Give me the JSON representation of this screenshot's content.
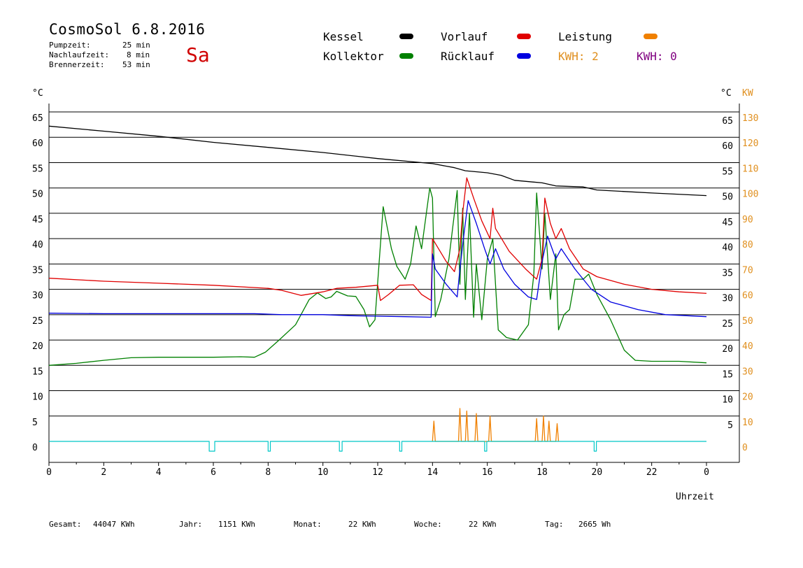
{
  "header": {
    "title": "CosmoSol 6.8.2016",
    "day": "Sa",
    "info": [
      {
        "label": "Pumpzeit:",
        "value": "25 min"
      },
      {
        "label": "Nachlaufzeit:",
        "value": "8 min"
      },
      {
        "label": "Brennerzeit:",
        "value": "53 min"
      }
    ]
  },
  "legend": {
    "items": [
      {
        "name": "Kessel",
        "color": "#000000"
      },
      {
        "name": "Kollektor",
        "color": "#008000"
      },
      {
        "name": "Vorlauf",
        "color": "#e00000"
      },
      {
        "name": "Rücklauf",
        "color": "#0000e0"
      },
      {
        "name": "Leistung",
        "color": "#f08000"
      }
    ],
    "kwh": [
      {
        "text": "KWH: 2",
        "color": "#e09020"
      },
      {
        "text": "KWH: 0",
        "color": "#800080"
      }
    ]
  },
  "stats": [
    {
      "label": "Gesamt:",
      "value": "44047 KWh"
    },
    {
      "label": "Jahr:",
      "value": "1151 KWh"
    },
    {
      "label": "Monat:",
      "value": "22 KWh"
    },
    {
      "label": "Woche:",
      "value": "22 KWh"
    },
    {
      "label": "Tag:",
      "value": "2665 Wh"
    }
  ],
  "chart_data": {
    "type": "line",
    "xlabel": "Uhrzeit",
    "ylabel_left": "°C",
    "ylabel_right": "°C",
    "ylabel_right2": "KW",
    "xlim": [
      0,
      24
    ],
    "ylim": [
      0,
      65
    ],
    "ylim_kw": [
      0,
      130
    ],
    "x_ticks": [
      "0",
      "2",
      "4",
      "6",
      "8",
      "10",
      "12",
      "14",
      "16",
      "18",
      "20",
      "22",
      "0"
    ],
    "y_ticks_left": [
      "0",
      "5",
      "10",
      "15",
      "20",
      "25",
      "30",
      "35",
      "40",
      "45",
      "50",
      "55",
      "60",
      "65"
    ],
    "y_ticks_right": [
      "5",
      "10",
      "15",
      "20",
      "25",
      "30",
      "35",
      "40",
      "45",
      "50",
      "55",
      "60",
      "65"
    ],
    "y_ticks_kw": [
      "0",
      "10",
      "20",
      "30",
      "40",
      "50",
      "60",
      "70",
      "80",
      "90",
      "100",
      "110",
      "120",
      "130"
    ],
    "grid": "horizontal",
    "series": [
      {
        "name": "Kessel",
        "color": "#000000",
        "points": [
          [
            0,
            62.2
          ],
          [
            2,
            61.2
          ],
          [
            4,
            60.2
          ],
          [
            6,
            59.0
          ],
          [
            8,
            58.0
          ],
          [
            10,
            57.0
          ],
          [
            12,
            55.8
          ],
          [
            14,
            54.8
          ],
          [
            14.8,
            54.0
          ],
          [
            15.2,
            53.4
          ],
          [
            16,
            53.0
          ],
          [
            16.5,
            52.5
          ],
          [
            17,
            51.5
          ],
          [
            18,
            51.0
          ],
          [
            18.5,
            50.4
          ],
          [
            19.5,
            50.2
          ],
          [
            20,
            49.6
          ],
          [
            22,
            49.0
          ],
          [
            24,
            48.5
          ]
        ]
      },
      {
        "name": "Kollektor",
        "color": "#008000",
        "points": [
          [
            0,
            15.0
          ],
          [
            1,
            15.4
          ],
          [
            2,
            16.0
          ],
          [
            3,
            16.5
          ],
          [
            4,
            16.6
          ],
          [
            5,
            16.6
          ],
          [
            6,
            16.6
          ],
          [
            7,
            16.7
          ],
          [
            7.5,
            16.6
          ],
          [
            7.9,
            17.6
          ],
          [
            8.4,
            20.0
          ],
          [
            9,
            23.0
          ],
          [
            9.5,
            28.0
          ],
          [
            9.8,
            29.3
          ],
          [
            10.1,
            28.2
          ],
          [
            10.3,
            28.5
          ],
          [
            10.5,
            29.6
          ],
          [
            10.9,
            28.7
          ],
          [
            11.2,
            28.6
          ],
          [
            11.5,
            26.0
          ],
          [
            11.7,
            22.6
          ],
          [
            11.9,
            24.0
          ],
          [
            12.2,
            46.3
          ],
          [
            12.5,
            38.0
          ],
          [
            12.7,
            34.5
          ],
          [
            13.0,
            32.0
          ],
          [
            13.2,
            35.0
          ],
          [
            13.4,
            42.5
          ],
          [
            13.6,
            38.0
          ],
          [
            13.9,
            50.0
          ],
          [
            14.0,
            48.0
          ],
          [
            14.1,
            24.6
          ],
          [
            14.3,
            28.0
          ],
          [
            14.6,
            36.0
          ],
          [
            14.9,
            49.5
          ],
          [
            15.0,
            31.0
          ],
          [
            15.1,
            46.0
          ],
          [
            15.2,
            28.0
          ],
          [
            15.35,
            45.0
          ],
          [
            15.5,
            24.5
          ],
          [
            15.6,
            35.0
          ],
          [
            15.8,
            24.0
          ],
          [
            16.0,
            36.0
          ],
          [
            16.2,
            40.0
          ],
          [
            16.4,
            22.0
          ],
          [
            16.7,
            20.5
          ],
          [
            17.1,
            20.0
          ],
          [
            17.5,
            23.0
          ],
          [
            17.7,
            33.0
          ],
          [
            17.8,
            49.0
          ],
          [
            18.0,
            34.0
          ],
          [
            18.1,
            45.0
          ],
          [
            18.3,
            28.0
          ],
          [
            18.5,
            37.0
          ],
          [
            18.6,
            22.0
          ],
          [
            18.8,
            25.0
          ],
          [
            19.0,
            26.0
          ],
          [
            19.2,
            32.0
          ],
          [
            19.5,
            32.0
          ],
          [
            19.7,
            33.0
          ],
          [
            20.0,
            29.0
          ],
          [
            20.5,
            24.0
          ],
          [
            21.0,
            18.0
          ],
          [
            21.4,
            16.0
          ],
          [
            22,
            15.8
          ],
          [
            23,
            15.8
          ],
          [
            24,
            15.5
          ]
        ]
      },
      {
        "name": "Vorlauf",
        "color": "#e00000",
        "points": [
          [
            0,
            32.2
          ],
          [
            2,
            31.6
          ],
          [
            4,
            31.2
          ],
          [
            6,
            30.8
          ],
          [
            8,
            30.2
          ],
          [
            8.5,
            29.8
          ],
          [
            9.2,
            28.8
          ],
          [
            10,
            29.5
          ],
          [
            10.5,
            30.2
          ],
          [
            11.2,
            30.4
          ],
          [
            12.0,
            30.8
          ],
          [
            12.1,
            27.8
          ],
          [
            12.4,
            29.0
          ],
          [
            12.8,
            30.8
          ],
          [
            13.3,
            30.9
          ],
          [
            13.6,
            29.0
          ],
          [
            13.95,
            27.8
          ],
          [
            14.0,
            40.0
          ],
          [
            14.5,
            35.5
          ],
          [
            14.8,
            33.5
          ],
          [
            15.0,
            38.0
          ],
          [
            15.1,
            45.0
          ],
          [
            15.25,
            52.0
          ],
          [
            15.5,
            48.0
          ],
          [
            15.8,
            43.5
          ],
          [
            16.1,
            40.0
          ],
          [
            16.2,
            46.0
          ],
          [
            16.3,
            42.0
          ],
          [
            16.8,
            37.5
          ],
          [
            17.4,
            34.0
          ],
          [
            17.8,
            32.0
          ],
          [
            18.0,
            36.0
          ],
          [
            18.1,
            48.0
          ],
          [
            18.3,
            43.0
          ],
          [
            18.5,
            40.0
          ],
          [
            18.7,
            42.0
          ],
          [
            19.0,
            38.0
          ],
          [
            19.5,
            34.0
          ],
          [
            20.0,
            32.5
          ],
          [
            21.0,
            31.0
          ],
          [
            22.0,
            30.0
          ],
          [
            23.0,
            29.5
          ],
          [
            24,
            29.2
          ]
        ]
      },
      {
        "name": "Rücklauf",
        "color": "#0000e0",
        "points": [
          [
            0,
            25.3
          ],
          [
            2,
            25.2
          ],
          [
            4,
            25.2
          ],
          [
            6,
            25.2
          ],
          [
            7.5,
            25.2
          ],
          [
            8.5,
            25.0
          ],
          [
            10,
            25.0
          ],
          [
            11,
            24.8
          ],
          [
            12,
            24.7
          ],
          [
            13,
            24.6
          ],
          [
            13.95,
            24.5
          ],
          [
            14.0,
            37.0
          ],
          [
            14.1,
            34.0
          ],
          [
            14.5,
            31.0
          ],
          [
            14.9,
            28.5
          ],
          [
            15.0,
            34.0
          ],
          [
            15.15,
            41.0
          ],
          [
            15.3,
            47.5
          ],
          [
            15.6,
            43.0
          ],
          [
            15.9,
            38.0
          ],
          [
            16.1,
            35.0
          ],
          [
            16.3,
            38.0
          ],
          [
            16.6,
            34.0
          ],
          [
            17.0,
            31.0
          ],
          [
            17.5,
            28.5
          ],
          [
            17.8,
            28.0
          ],
          [
            18.0,
            35.5
          ],
          [
            18.2,
            40.5
          ],
          [
            18.5,
            36.0
          ],
          [
            18.7,
            38.0
          ],
          [
            19.2,
            34.0
          ],
          [
            19.8,
            30.0
          ],
          [
            20.5,
            27.5
          ],
          [
            21.5,
            26.0
          ],
          [
            22.5,
            25.0
          ],
          [
            24,
            24.6
          ]
        ]
      },
      {
        "name": "Leistung",
        "color": "#f08000",
        "points": [
          [
            14.0,
            0
          ],
          [
            14.05,
            8
          ],
          [
            14.1,
            0
          ],
          [
            14.95,
            0
          ],
          [
            15.0,
            13
          ],
          [
            15.05,
            0
          ],
          [
            15.2,
            0
          ],
          [
            15.25,
            12
          ],
          [
            15.3,
            0
          ],
          [
            15.55,
            0
          ],
          [
            15.6,
            11
          ],
          [
            15.65,
            0
          ],
          [
            16.05,
            0
          ],
          [
            16.1,
            10
          ],
          [
            16.15,
            0
          ],
          [
            17.75,
            0
          ],
          [
            17.8,
            9
          ],
          [
            17.85,
            0
          ],
          [
            18.0,
            0
          ],
          [
            18.05,
            10
          ],
          [
            18.1,
            0
          ],
          [
            18.2,
            0
          ],
          [
            18.25,
            8
          ],
          [
            18.3,
            0
          ],
          [
            18.5,
            0
          ],
          [
            18.55,
            7
          ],
          [
            18.6,
            0
          ]
        ]
      },
      {
        "name": "Pumpe",
        "color": "#00c8c8",
        "points": [
          [
            0,
            0
          ],
          [
            5.85,
            0
          ],
          [
            5.85,
            -1
          ],
          [
            6.05,
            -1
          ],
          [
            6.05,
            0
          ],
          [
            8.0,
            0
          ],
          [
            8.0,
            -1
          ],
          [
            8.08,
            -1
          ],
          [
            8.08,
            0
          ],
          [
            10.6,
            0
          ],
          [
            10.6,
            -1
          ],
          [
            10.7,
            -1
          ],
          [
            10.7,
            0
          ],
          [
            12.8,
            0
          ],
          [
            12.8,
            -1
          ],
          [
            12.88,
            -1
          ],
          [
            12.88,
            0
          ],
          [
            15.9,
            0
          ],
          [
            15.9,
            -1
          ],
          [
            15.98,
            -1
          ],
          [
            15.98,
            0
          ],
          [
            19.9,
            0
          ],
          [
            19.9,
            -1
          ],
          [
            19.98,
            -1
          ],
          [
            19.98,
            0
          ],
          [
            24,
            0
          ]
        ]
      }
    ]
  }
}
